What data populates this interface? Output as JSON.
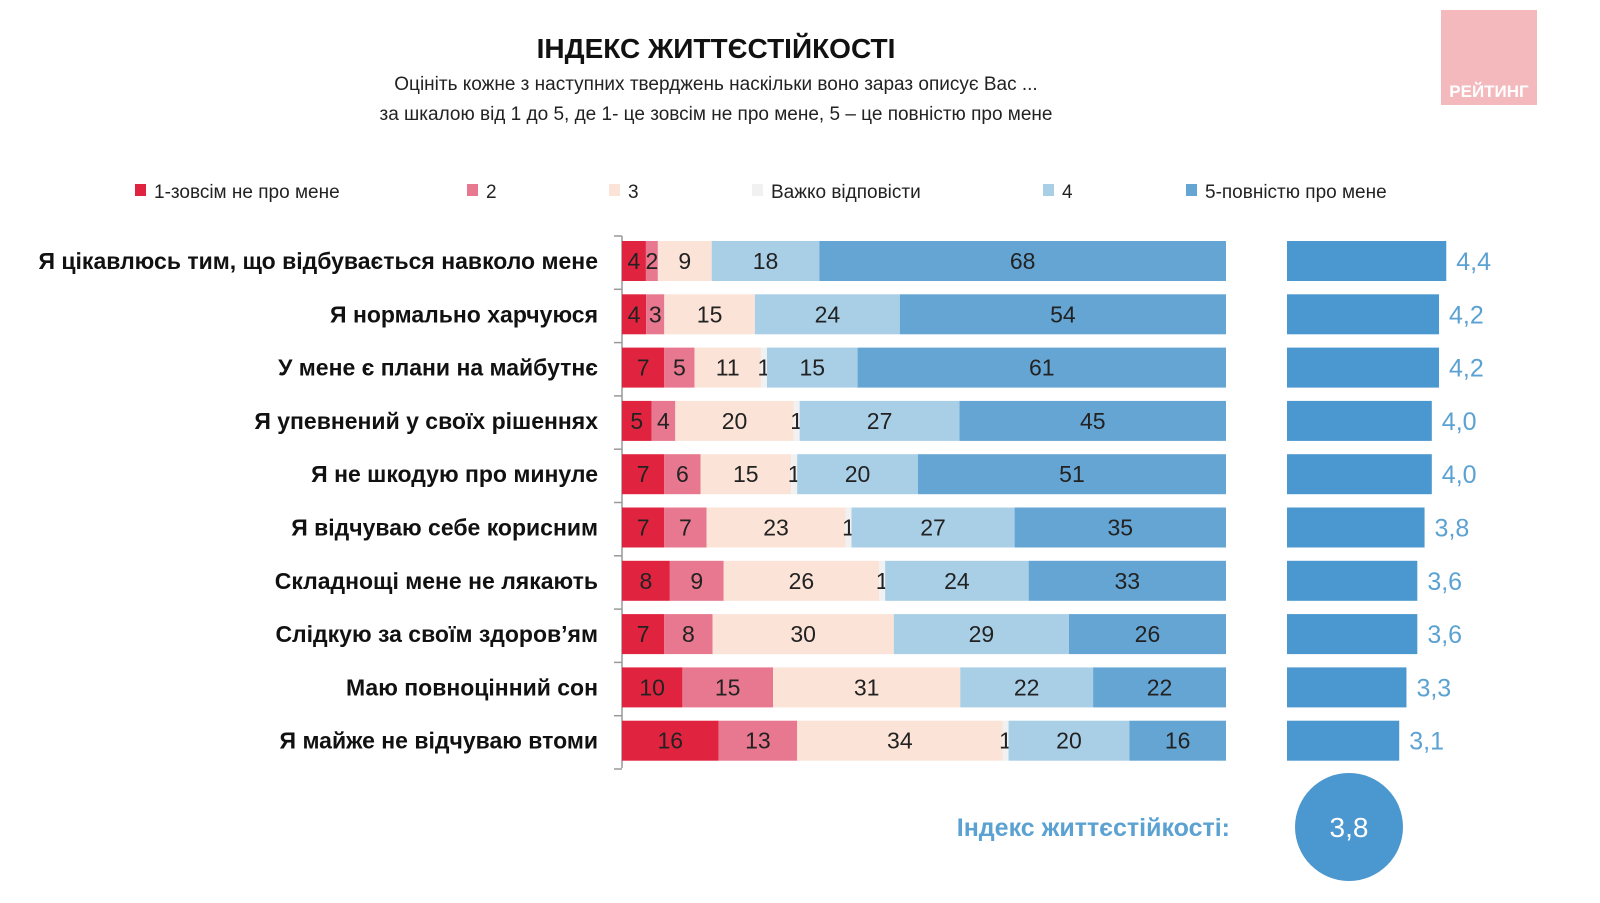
{
  "logo_text": "РЕЙТИНГ",
  "chart_data": {
    "type": "bar",
    "orientation": "horizontal-stacked-100",
    "title": "ІНДЕКС ЖИТТЄСТІЙКОСТІ",
    "subtitle_lines": [
      "Оцініть кожне з наступних тверджень наскільки воно зараз описує Вас ...",
      "за шкалою від 1 до 5, де 1- це зовсім не про мене, 5 – це повністю про мене"
    ],
    "legend_placement": "top",
    "series": [
      {
        "name": "1-зовсім не про мене",
        "color": "#e0243f",
        "values": [
          4,
          4,
          7,
          5,
          7,
          7,
          8,
          7,
          10,
          16
        ]
      },
      {
        "name": "2",
        "color": "#e8788f",
        "values": [
          2,
          3,
          5,
          4,
          6,
          7,
          9,
          8,
          15,
          13
        ]
      },
      {
        "name": "3",
        "color": "#fbe3d8",
        "values": [
          9,
          15,
          11,
          20,
          15,
          23,
          26,
          30,
          31,
          34
        ]
      },
      {
        "name": "Важко відповісти",
        "color": "#f1f1f1",
        "values": [
          0,
          0,
          1,
          1,
          1,
          1,
          1,
          0,
          0,
          1
        ]
      },
      {
        "name": "4",
        "color": "#a9cfe7",
        "values": [
          18,
          24,
          15,
          27,
          20,
          27,
          24,
          29,
          22,
          20
        ]
      },
      {
        "name": "5-повністю про мене",
        "color": "#65a5d4",
        "values": [
          68,
          54,
          61,
          45,
          51,
          35,
          33,
          26,
          22,
          16
        ]
      }
    ],
    "categories": [
      "Я цікавлюсь тим, що відбувається навколо мене",
      "Я нормально харчуюся",
      "У мене є плани на майбутнє",
      "Я упевнений у своїх рішеннях",
      "Я не шкодую про минуле",
      "Я відчуваю себе корисним",
      "Складнощі мене не лякають",
      "Слідкую за своїм здоров’ям",
      "Маю повноцінний сон",
      "Я майже не відчуваю втоми"
    ],
    "index_values": [
      4.4,
      4.2,
      4.2,
      4.0,
      4.0,
      3.8,
      3.6,
      3.6,
      3.3,
      3.1
    ],
    "index_labels": [
      "4,4",
      "4,2",
      "4,2",
      "4,0",
      "4,0",
      "3,8",
      "3,6",
      "3,6",
      "3,3",
      "3,1"
    ],
    "index_color": "#4b97cf",
    "overall_index_label": "Індекс життєстійкості:",
    "overall_index_value": "3,8"
  }
}
